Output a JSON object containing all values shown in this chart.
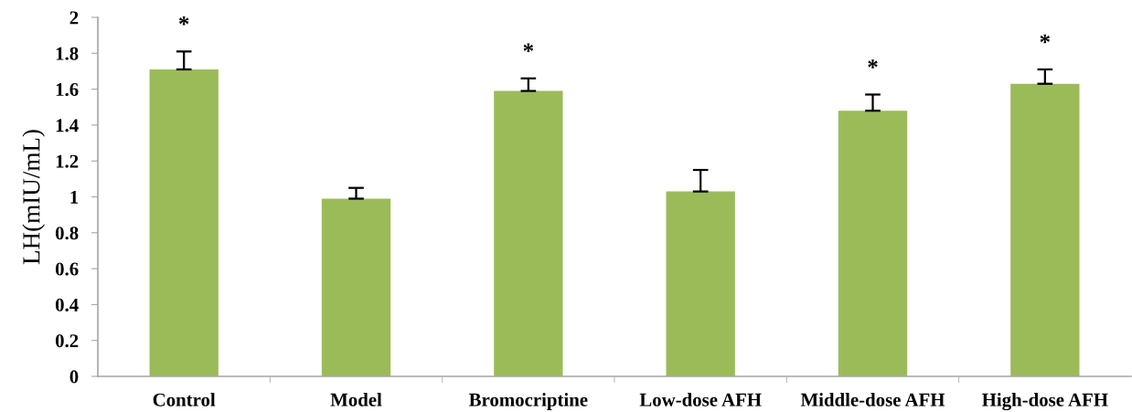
{
  "chart_data": {
    "type": "bar",
    "ylabel": "LH(mIU/mL)",
    "categories": [
      "Control",
      "Model",
      "Bromocriptine",
      "Low-dose AFH",
      "Middle-dose AFH",
      "High-dose AFH"
    ],
    "values": [
      1.71,
      0.99,
      1.59,
      1.03,
      1.48,
      1.63
    ],
    "errors": [
      [
        1.71,
        1.81
      ],
      [
        0.99,
        1.05
      ],
      [
        1.59,
        1.66
      ],
      [
        1.03,
        1.15
      ],
      [
        1.48,
        1.57
      ],
      [
        1.63,
        1.71
      ]
    ],
    "color": "#9bbb59",
    "ylim": [
      0,
      2
    ],
    "yticks": [
      0,
      0.2,
      0.4,
      0.6,
      0.8,
      1,
      1.2,
      1.4,
      1.6,
      1.8,
      2
    ],
    "grid": false,
    "legend": false,
    "annotations": [
      {
        "text": "*",
        "x": "Control",
        "y": 1.71
      },
      {
        "text": "*",
        "x": "Bromocriptine",
        "y": 1.59
      },
      {
        "text": "*",
        "x": "Middle-dose AFH",
        "y": 1.48
      },
      {
        "text": "*",
        "x": "High-dose AFH",
        "y": 1.63
      }
    ]
  }
}
